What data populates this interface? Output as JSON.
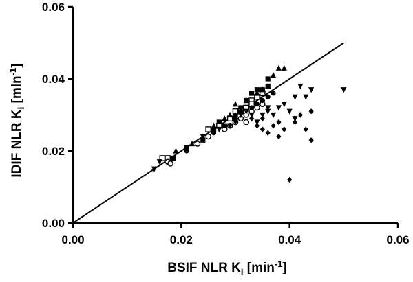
{
  "chart_data": {
    "type": "scatter",
    "title": "",
    "xlabel": {
      "main": "BSIF NLR K",
      "sub": "i",
      "bracket_open": " [min",
      "sup": "-1",
      "bracket_close": "]"
    },
    "ylabel": {
      "main": "IDIF NLR K",
      "sub": "i",
      "bracket_open": " [mln",
      "sup": "-1",
      "bracket_close": "]"
    },
    "xlim": [
      0,
      0.06
    ],
    "ylim": [
      0,
      0.06
    ],
    "xticks": [
      "0.00",
      "0.02",
      "0.04",
      "0.06"
    ],
    "yticks": [
      "0.00",
      "0.02",
      "0.04",
      "0.06"
    ],
    "grid": false,
    "legend": "none",
    "line": {
      "x": [
        0,
        0.05
      ],
      "y": [
        0,
        0.05
      ]
    },
    "series": [
      {
        "marker": "square-filled",
        "points": [
          [
            0.0185,
            0.018
          ],
          [
            0.021,
            0.021
          ],
          [
            0.024,
            0.023
          ],
          [
            0.026,
            0.026
          ],
          [
            0.028,
            0.027
          ],
          [
            0.03,
            0.03
          ],
          [
            0.031,
            0.032
          ],
          [
            0.032,
            0.034
          ],
          [
            0.033,
            0.036
          ],
          [
            0.034,
            0.037
          ],
          [
            0.035,
            0.037
          ],
          [
            0.036,
            0.038
          ],
          [
            0.034,
            0.035
          ],
          [
            0.033,
            0.033
          ],
          [
            0.029,
            0.029
          ],
          [
            0.027,
            0.028
          ],
          [
            0.036,
            0.04
          ]
        ]
      },
      {
        "marker": "square-open",
        "points": [
          [
            0.0165,
            0.018
          ],
          [
            0.0175,
            0.018
          ],
          [
            0.025,
            0.026
          ],
          [
            0.027,
            0.027
          ],
          [
            0.029,
            0.029
          ],
          [
            0.03,
            0.031
          ],
          [
            0.031,
            0.031
          ],
          [
            0.032,
            0.032
          ],
          [
            0.033,
            0.034
          ],
          [
            0.034,
            0.035
          ],
          [
            0.035,
            0.036
          ],
          [
            0.033,
            0.033
          ]
        ]
      },
      {
        "marker": "circle-open",
        "points": [
          [
            0.0175,
            0.017
          ],
          [
            0.018,
            0.0165
          ],
          [
            0.023,
            0.022
          ],
          [
            0.025,
            0.024
          ],
          [
            0.028,
            0.026
          ],
          [
            0.029,
            0.027
          ],
          [
            0.03,
            0.028
          ],
          [
            0.031,
            0.029
          ],
          [
            0.032,
            0.03
          ],
          [
            0.033,
            0.031
          ],
          [
            0.034,
            0.032
          ],
          [
            0.035,
            0.033
          ],
          [
            0.032,
            0.028
          ]
        ]
      },
      {
        "marker": "circle-filled",
        "points": [
          [
            0.021,
            0.02
          ],
          [
            0.026,
            0.025
          ],
          [
            0.028,
            0.027
          ],
          [
            0.03,
            0.029
          ],
          [
            0.031,
            0.031
          ],
          [
            0.033,
            0.032
          ],
          [
            0.034,
            0.033
          ],
          [
            0.036,
            0.035
          ],
          [
            0.035,
            0.034
          ],
          [
            0.037,
            0.036
          ]
        ]
      },
      {
        "marker": "triangle-up",
        "points": [
          [
            0.019,
            0.02
          ],
          [
            0.022,
            0.022
          ],
          [
            0.024,
            0.024
          ],
          [
            0.026,
            0.027
          ],
          [
            0.029,
            0.03
          ],
          [
            0.03,
            0.033
          ],
          [
            0.032,
            0.034
          ],
          [
            0.034,
            0.036
          ],
          [
            0.035,
            0.037
          ],
          [
            0.036,
            0.038
          ],
          [
            0.037,
            0.041
          ],
          [
            0.038,
            0.043
          ],
          [
            0.039,
            0.043
          ],
          [
            0.028,
            0.029
          ]
        ]
      },
      {
        "marker": "triangle-down",
        "points": [
          [
            0.015,
            0.015
          ],
          [
            0.016,
            0.017
          ],
          [
            0.024,
            0.024
          ],
          [
            0.027,
            0.026
          ],
          [
            0.03,
            0.028
          ],
          [
            0.031,
            0.03
          ],
          [
            0.032,
            0.031
          ],
          [
            0.033,
            0.03
          ],
          [
            0.034,
            0.028
          ],
          [
            0.035,
            0.03
          ],
          [
            0.036,
            0.031
          ],
          [
            0.037,
            0.03
          ],
          [
            0.038,
            0.032
          ],
          [
            0.039,
            0.033
          ],
          [
            0.04,
            0.031
          ],
          [
            0.041,
            0.035
          ],
          [
            0.042,
            0.038
          ],
          [
            0.043,
            0.035
          ],
          [
            0.044,
            0.037
          ],
          [
            0.05,
            0.037
          ],
          [
            0.036,
            0.032
          ],
          [
            0.041,
            0.029
          ],
          [
            0.029,
            0.027
          ]
        ]
      },
      {
        "marker": "diamond-filled",
        "points": [
          [
            0.03,
            0.03
          ],
          [
            0.031,
            0.031
          ],
          [
            0.033,
            0.029
          ],
          [
            0.034,
            0.027
          ],
          [
            0.035,
            0.029
          ],
          [
            0.036,
            0.025
          ],
          [
            0.037,
            0.027
          ],
          [
            0.038,
            0.024
          ],
          [
            0.039,
            0.026
          ],
          [
            0.04,
            0.012
          ],
          [
            0.041,
            0.028
          ],
          [
            0.042,
            0.03
          ],
          [
            0.043,
            0.026
          ],
          [
            0.044,
            0.031
          ],
          [
            0.044,
            0.023
          ],
          [
            0.038,
            0.028
          ],
          [
            0.035,
            0.026
          ]
        ]
      }
    ]
  }
}
